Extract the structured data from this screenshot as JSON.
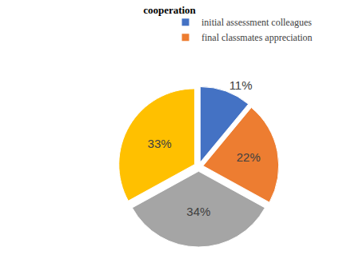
{
  "chart_data": {
    "type": "pie",
    "title": "cooperation",
    "categories": [
      "initial assessment colleagues",
      "final classmates appreciation",
      null,
      null
    ],
    "values": [
      11,
      22,
      34,
      33
    ],
    "value_labels": [
      "11%",
      "22%",
      "34%",
      "33%"
    ],
    "colors": [
      "#4472c4",
      "#ed7d31",
      "#a5a5a5",
      "#ffc000"
    ],
    "data_labels": true,
    "legend": "top"
  }
}
